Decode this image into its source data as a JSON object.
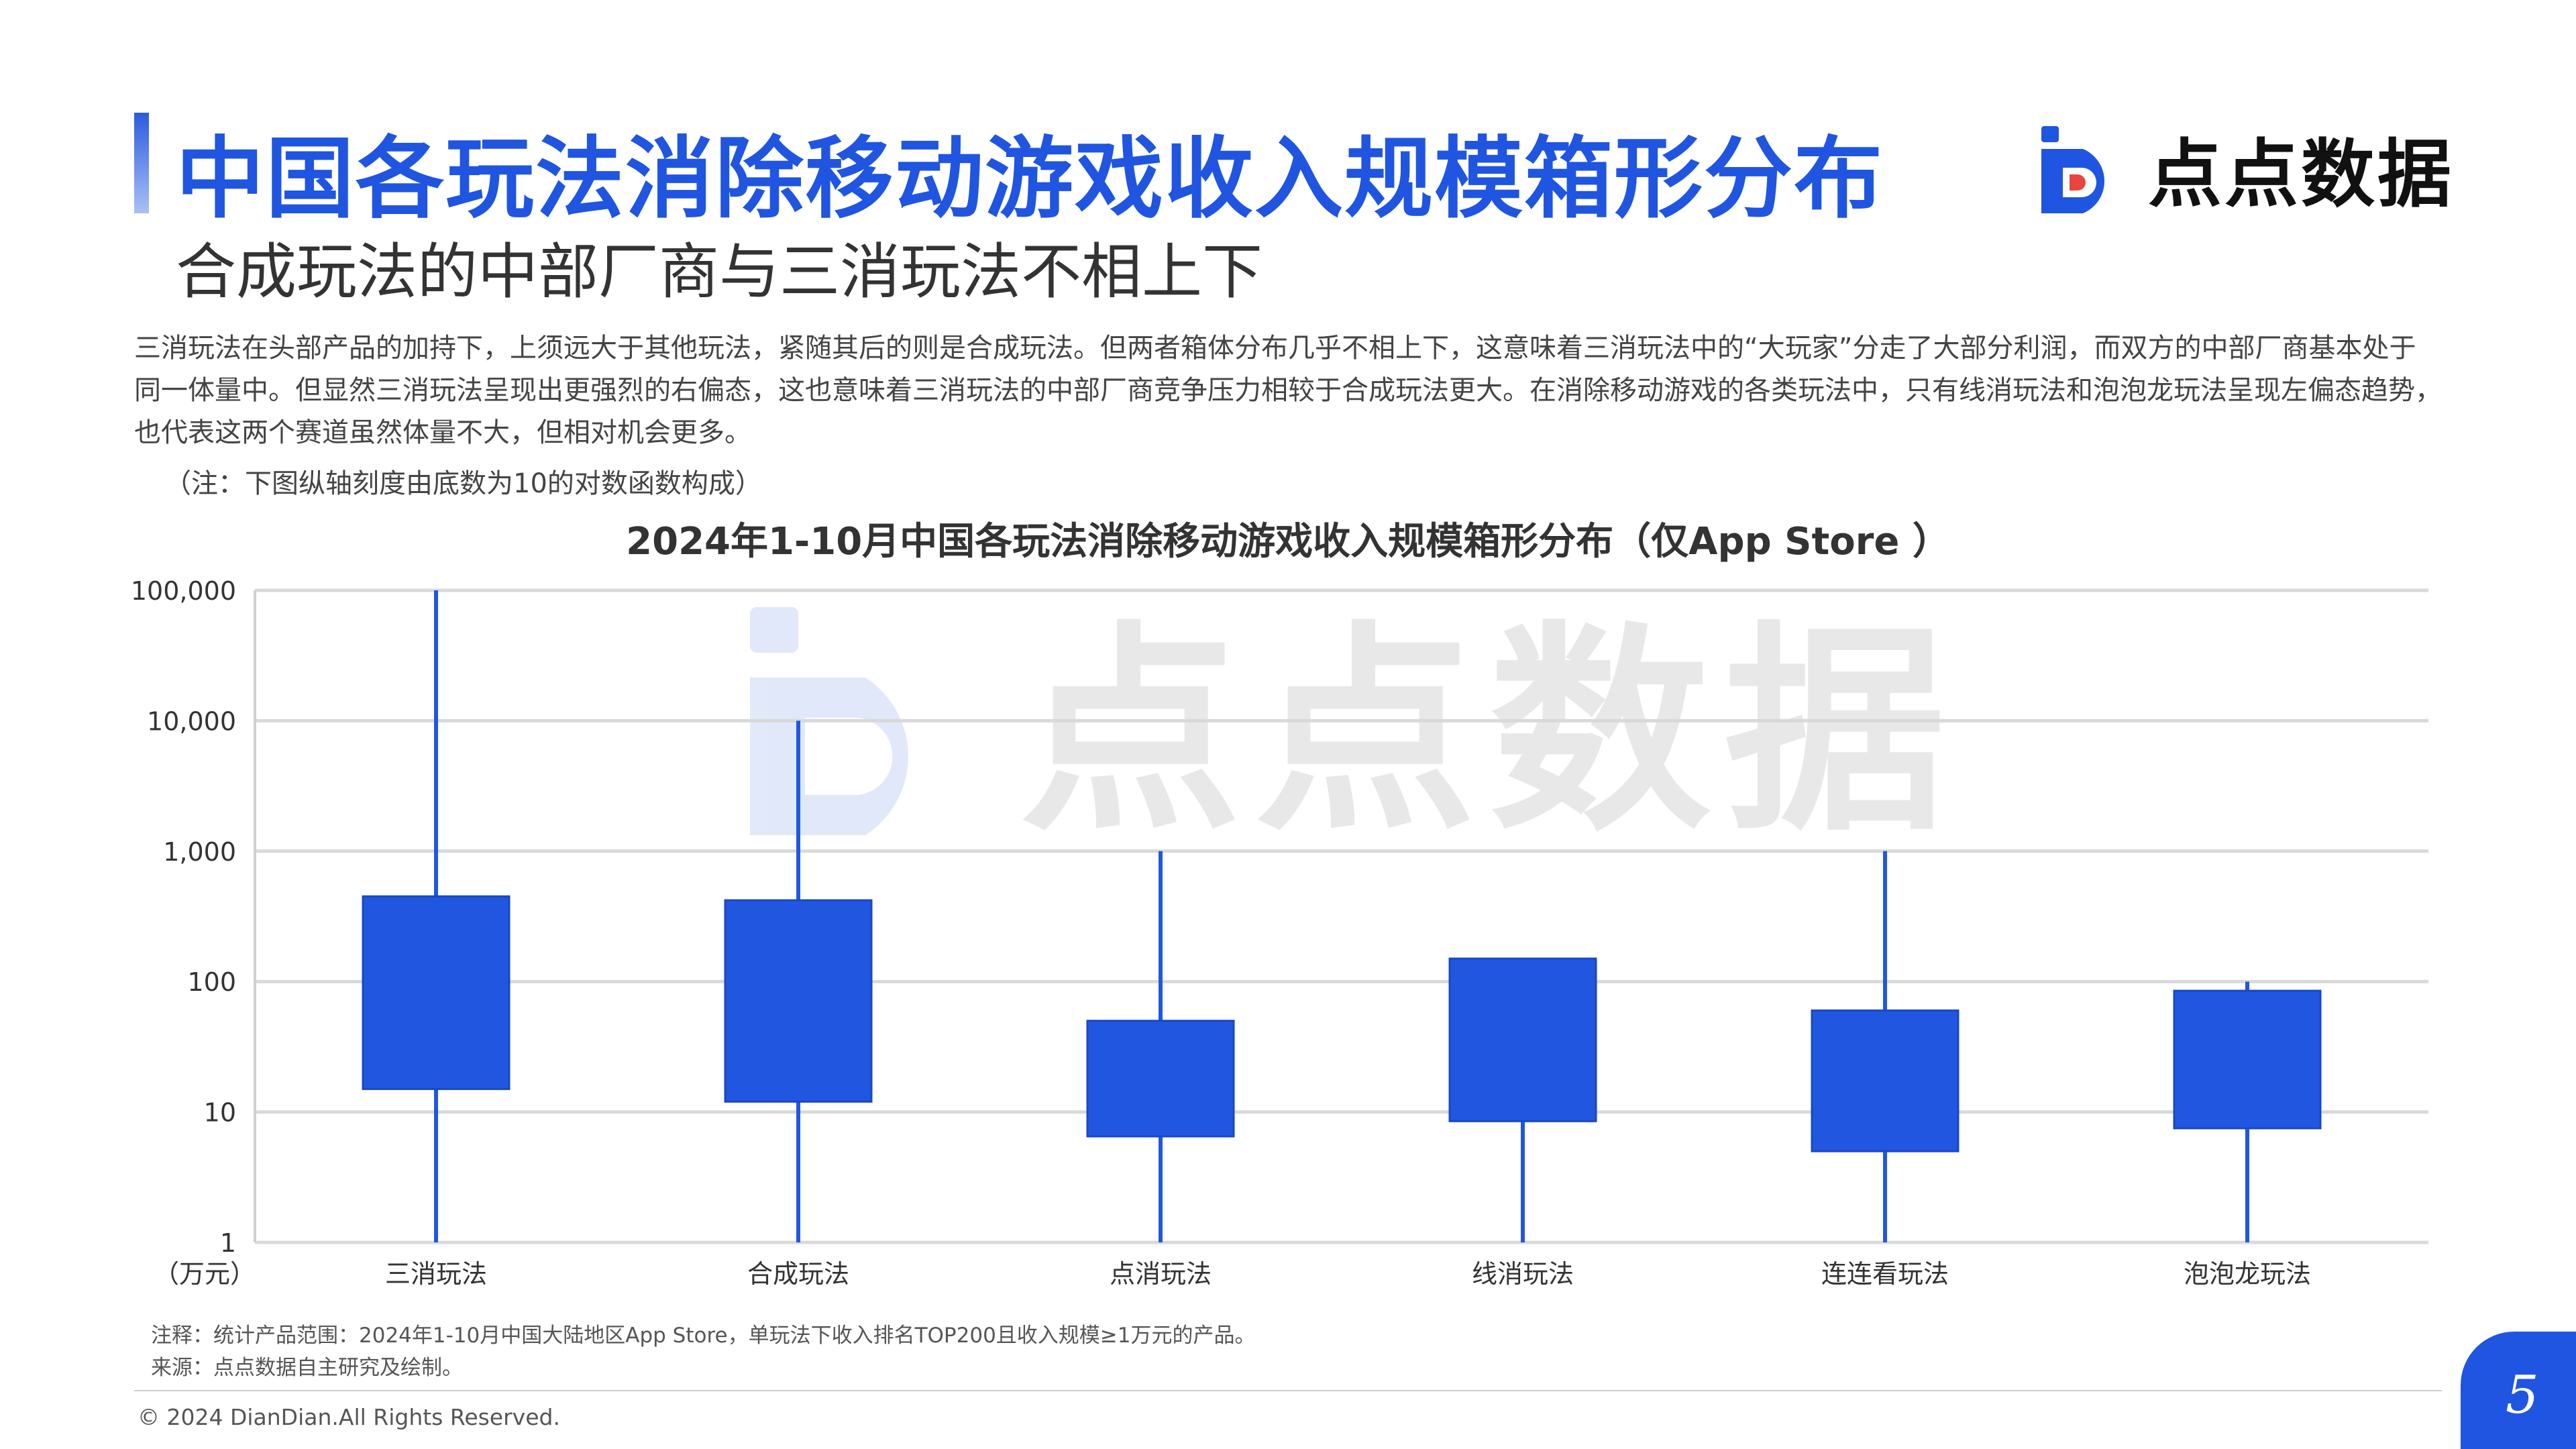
{
  "header": {
    "title": "中国各玩法消除移动游戏收入规模箱形分布",
    "subtitle": "合成玩法的中部厂商与三消玩法不相上下",
    "logo_text": "点点数据",
    "watermark_text": "点点数据"
  },
  "body": {
    "description": "三消玩法在头部产品的加持下，上须远大于其他玩法，紧随其后的则是合成玩法。但两者箱体分布几乎不相上下，这意味着三消玩法中的“大玩家”分走了大部分利润，而双方的中部厂商基本处于同一体量中。但显然三消玩法呈现出更强烈的右偏态，这也意味着三消玩法的中部厂商竞争压力相较于合成玩法更大。在消除移动游戏的各类玩法中，只有线消玩法和泡泡龙玩法呈现左偏态趋势，也代表这两个赛道虽然体量不大，但相对机会更多。",
    "note": "（注：下图纵轴刻度由底数为10的对数函数构成）"
  },
  "chart_data": {
    "type": "box",
    "title": "2024年1-10月中国各玩法消除移动游戏收入规模箱形分布（仅App Store ）",
    "ylabel": "（万元）",
    "yscale": "log10",
    "ylim": [
      1,
      100000
    ],
    "yticks": [
      "1",
      "10",
      "100",
      "1,000",
      "10,000",
      "100,000"
    ],
    "ytick_values": [
      1,
      10,
      100,
      1000,
      10000,
      100000
    ],
    "grid": true,
    "box_color": "#2157e0",
    "categories": [
      "三消玩法",
      "合成玩法",
      "点消玩法",
      "线消玩法",
      "连连看玩法",
      "泡泡龙玩法"
    ],
    "boxes": [
      {
        "min": 1,
        "q1": 15,
        "q3": 450,
        "max": 100000
      },
      {
        "min": 1,
        "q1": 12,
        "q3": 420,
        "max": 10000
      },
      {
        "min": 1,
        "q1": 6.5,
        "q3": 50,
        "max": 1000
      },
      {
        "min": 1,
        "q1": 8.5,
        "q3": 150,
        "max": 150
      },
      {
        "min": 1,
        "q1": 5,
        "q3": 60,
        "max": 1000
      },
      {
        "min": 1,
        "q1": 7.5,
        "q3": 85,
        "max": 100
      }
    ]
  },
  "footer": {
    "note": "注释：统计产品范围：2024年1-10月中国大陆地区App Store，单玩法下收入排名TOP200且收入规模≥1万元的产品。",
    "source": "来源：点点数据自主研究及绘制。",
    "copyright": "© 2024 DianDian.All Rights Reserved.",
    "page_number": "5"
  }
}
